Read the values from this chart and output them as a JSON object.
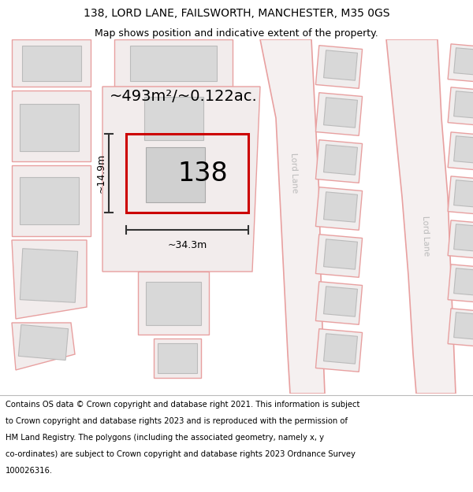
{
  "title_line1": "138, LORD LANE, FAILSWORTH, MANCHESTER, M35 0GS",
  "title_line2": "Map shows position and indicative extent of the property.",
  "footer_lines": [
    "Contains OS data © Crown copyright and database right 2021. This information is subject",
    "to Crown copyright and database rights 2023 and is reproduced with the permission of",
    "HM Land Registry. The polygons (including the associated geometry, namely x, y",
    "co-ordinates) are subject to Crown copyright and database rights 2023 Ordnance Survey",
    "100026316."
  ],
  "map_bg": "#f7f4f4",
  "road_color": "#e8a0a0",
  "road_fill": "#f2ecec",
  "building_fill": "#d8d8d8",
  "building_edge": "#bbbbbb",
  "subject_fill": "#eeeeee",
  "subject_edge": "#cc0000",
  "area_text": "~493m²/~0.122ac.",
  "number_text": "138",
  "dim_width": "~34.3m",
  "dim_height": "~14.9m",
  "road_label_color": "#bbbbbb",
  "title_fontsize": 10,
  "subtitle_fontsize": 9,
  "footer_fontsize": 7.2,
  "area_fontsize": 14,
  "number_fontsize": 24,
  "dim_fontsize": 9
}
